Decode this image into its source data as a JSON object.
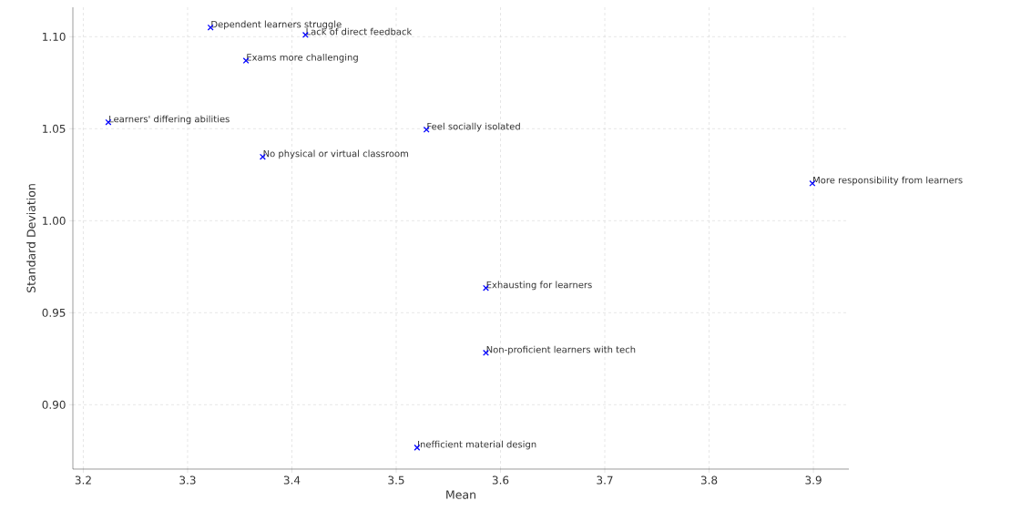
{
  "chart_data": {
    "type": "scatter",
    "xlabel": "Mean",
    "ylabel": "Standard Deviation",
    "series": [
      {
        "color": "#0000ff",
        "x": [
          3.322,
          3.413,
          3.356,
          3.224,
          3.529,
          3.372,
          3.899,
          3.586,
          3.586,
          3.52
        ],
        "values": [
          1.105,
          1.101,
          1.087,
          1.0535,
          1.0495,
          1.0347,
          1.0203,
          0.9634,
          0.9282,
          0.8767
        ]
      }
    ],
    "marker": "cross",
    "grid": true,
    "xlim": [
      3.19,
      3.934
    ],
    "ylim": [
      0.865,
      1.116
    ],
    "xticks": [
      3.2,
      3.3,
      3.4,
      3.5,
      3.6,
      3.7,
      3.8,
      3.9
    ],
    "yticks": [
      {
        "value": 0.9,
        "label": "0.90"
      },
      {
        "value": 0.95,
        "label": "0.95"
      },
      {
        "value": 1.0,
        "label": "1.00"
      },
      {
        "value": 1.05,
        "label": "1.05"
      },
      {
        "value": 1.1,
        "label": "1.10"
      }
    ],
    "annotations": [
      {
        "text": "Dependent learners struggle",
        "x": 3.322,
        "y": 1.105
      },
      {
        "text": "Lack of direct feedback",
        "x": 3.413,
        "y": 1.101
      },
      {
        "text": "Exams more challenging",
        "x": 3.356,
        "y": 1.087
      },
      {
        "text": "Learners' differing abilities",
        "x": 3.224,
        "y": 1.0535
      },
      {
        "text": "Feel socially isolated",
        "x": 3.529,
        "y": 1.0495
      },
      {
        "text": "No physical or virtual classroom",
        "x": 3.372,
        "y": 1.0347
      },
      {
        "text": "More responsibility from learners",
        "x": 3.899,
        "y": 1.0203
      },
      {
        "text": "Exhausting for learners",
        "x": 3.586,
        "y": 0.9634
      },
      {
        "text": "Non-proficient learners with tech",
        "x": 3.586,
        "y": 0.9282
      },
      {
        "text": "Inefficient material design",
        "x": 3.52,
        "y": 0.8767
      }
    ]
  }
}
